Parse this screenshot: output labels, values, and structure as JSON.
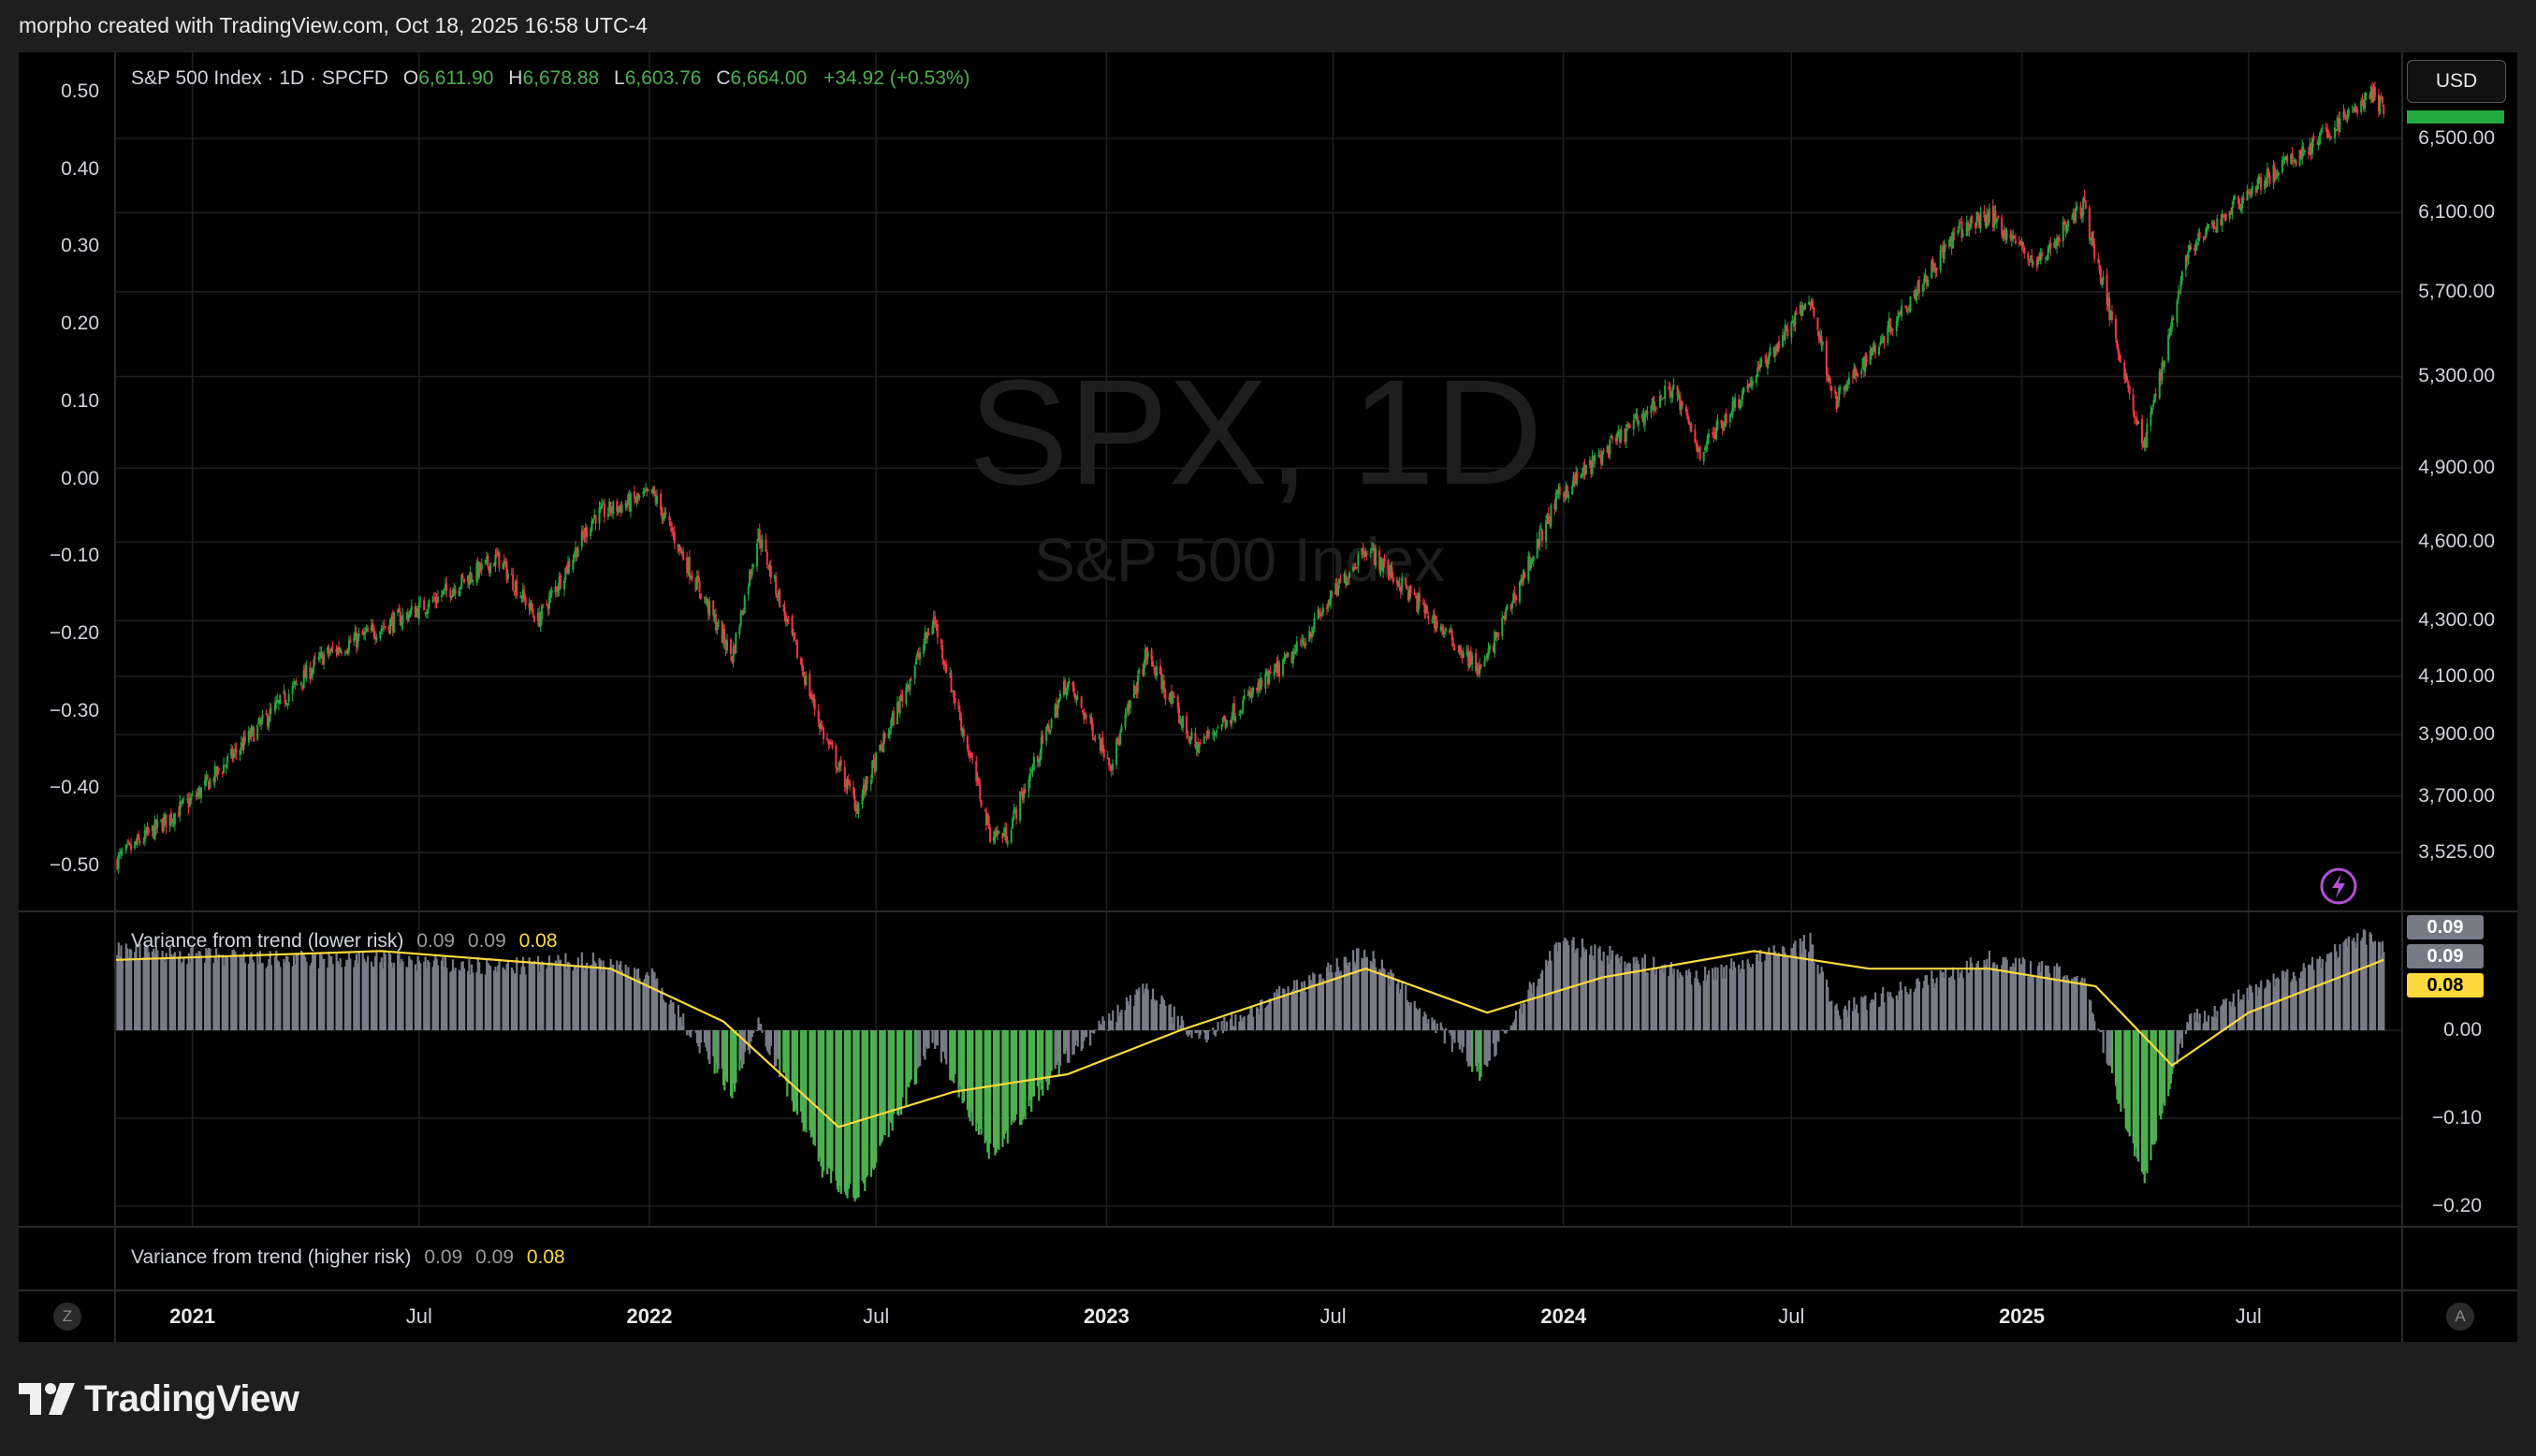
{
  "header": {
    "credit": "morpho created with TradingView.com, Oct 18, 2025 16:58 UTC-4"
  },
  "legend": {
    "symbol": "S&P 500 Index · 1D · SPCFD",
    "o_label": "O",
    "o_value": "6,611.90",
    "h_label": "H",
    "h_value": "6,678.88",
    "l_label": "L",
    "l_value": "6,603.76",
    "c_label": "C",
    "c_value": "6,664.00",
    "change": "+34.92 (+0.53%)"
  },
  "watermark": {
    "ticker": "SPX, 1D",
    "name": "S&P 500 Index"
  },
  "currency_button": "USD",
  "indicators": {
    "lower": {
      "name": "Variance from trend (lower risk)",
      "v1": "0.09",
      "v2": "0.09",
      "v3": "0.08"
    },
    "higher": {
      "name": "Variance from trend (higher risk)",
      "v1": "0.09",
      "v2": "0.09",
      "v3": "0.08"
    }
  },
  "indicator_tags": {
    "t1": "0.09",
    "t2": "0.09",
    "t3": "0.08"
  },
  "corner_buttons": {
    "left": "Z",
    "right": "A"
  },
  "logo_text": "TradingView",
  "colors": {
    "up": "#22ab3e",
    "down": "#f23645",
    "hist_pos": "#787b86",
    "hist_neg": "#4caf50",
    "trend": "#ffd93d",
    "background": "#000000"
  },
  "chart_data": [
    {
      "type": "candlestick",
      "title": "S&P 500 Index · 1D · SPCFD",
      "right_axis_ticks": [
        "6,500.00",
        "6,100.00",
        "5,700.00",
        "5,300.00",
        "4,900.00",
        "4,600.00",
        "4,300.00",
        "4,100.00",
        "3,900.00",
        "3,700.00",
        "3,525.00"
      ],
      "left_axis_ticks": [
        "0.50",
        "0.40",
        "0.30",
        "0.20",
        "0.10",
        "0.00",
        "−0.10",
        "−0.20",
        "−0.30",
        "−0.40",
        "−0.50"
      ],
      "x_tick_labels": [
        "2021",
        "Jul",
        "2022",
        "Jul",
        "2023",
        "Jul",
        "2024",
        "Jul",
        "2025",
        "Jul"
      ],
      "y_scale": "log",
      "x": [
        "2020-11-01",
        "2021-01-04",
        "2021-04-15",
        "2021-07-07",
        "2021-09-02",
        "2021-10-04",
        "2021-11-18",
        "2022-01-04",
        "2022-03-08",
        "2022-03-29",
        "2022-05-20",
        "2022-06-16",
        "2022-08-16",
        "2022-09-30",
        "2022-10-13",
        "2022-11-30",
        "2023-01-05",
        "2023-02-02",
        "2023-03-13",
        "2023-05-31",
        "2023-07-27",
        "2023-10-27",
        "2023-12-28",
        "2024-03-28",
        "2024-04-19",
        "2024-07-16",
        "2024-08-05",
        "2024-11-11",
        "2024-12-06",
        "2025-01-13",
        "2025-02-19",
        "2025-04-08",
        "2025-05-13",
        "2025-06-30",
        "2025-08-28",
        "2025-10-08",
        "2025-10-17"
      ],
      "close": [
        3500,
        3700,
        4170,
        4358,
        4537,
        4300,
        4704,
        4793,
        4170,
        4631,
        3900,
        3666,
        4305,
        3585,
        3577,
        4080,
        3808,
        4179,
        3855,
        4179,
        4582,
        4117,
        4783,
        5254,
        4967,
        5667,
        5186,
        6001,
        6090,
        5836,
        6144,
        4982,
        5892,
        6205,
        6502,
        6753,
        6664
      ]
    },
    {
      "type": "histogram",
      "title": "Variance from trend (lower risk)",
      "y_axis_ticks": [
        "0.00",
        "−0.10",
        "−0.20"
      ],
      "series": [
        {
          "name": "Variance from trend (lower risk)",
          "x": [
            "2020-11-01",
            "2021-03-01",
            "2021-06-01",
            "2021-09-01",
            "2021-11-18",
            "2022-01-04",
            "2022-03-08",
            "2022-03-29",
            "2022-05-20",
            "2022-06-16",
            "2022-08-16",
            "2022-09-30",
            "2022-10-13",
            "2022-12-01",
            "2023-02-02",
            "2023-03-13",
            "2023-07-27",
            "2023-10-27",
            "2023-12-28",
            "2024-04-19",
            "2024-07-16",
            "2024-08-05",
            "2024-12-06",
            "2025-02-19",
            "2025-04-08",
            "2025-05-13",
            "2025-07-15",
            "2025-10-08",
            "2025-10-17"
          ],
          "values": [
            0.09,
            0.08,
            0.08,
            0.07,
            0.08,
            0.06,
            -0.07,
            0.01,
            -0.16,
            -0.19,
            -0.01,
            -0.14,
            -0.12,
            -0.03,
            0.05,
            -0.01,
            0.09,
            -0.05,
            0.1,
            0.06,
            0.1,
            0.02,
            0.08,
            0.06,
            -0.17,
            0.01,
            0.05,
            0.11,
            0.09
          ]
        },
        {
          "name": "",
          "x": [
            "2020-11-01",
            "2021-06-01",
            "2021-12-01",
            "2022-03-01",
            "2022-06-01",
            "2022-09-01",
            "2022-12-01",
            "2023-03-01",
            "2023-07-27",
            "2023-11-01",
            "2024-02-01",
            "2024-06-01",
            "2024-09-01",
            "2024-12-06",
            "2025-03-01",
            "2025-05-01",
            "2025-07-01",
            "2025-10-17"
          ],
          "values": [
            0.08,
            0.09,
            0.07,
            0.01,
            -0.11,
            -0.07,
            -0.05,
            0.0,
            0.07,
            0.02,
            0.06,
            0.09,
            0.07,
            0.07,
            0.05,
            -0.04,
            0.02,
            0.08
          ]
        }
      ]
    }
  ]
}
